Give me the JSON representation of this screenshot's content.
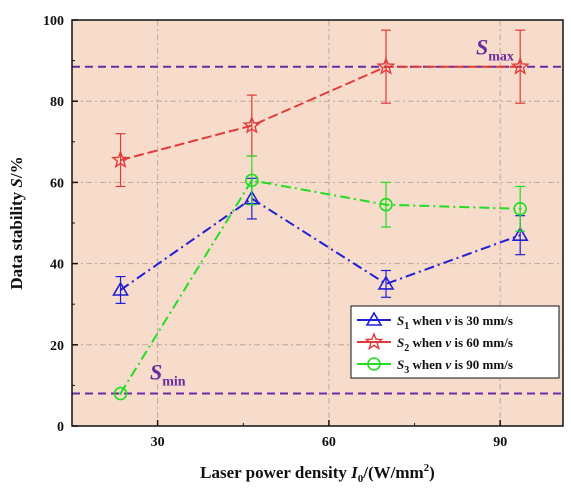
{
  "chart_data": {
    "type": "line",
    "xlabel": {
      "main": "Laser power density ",
      "var": "I",
      "sub": "0",
      "unit": "/(W/mm",
      "sup": "2",
      "close": ")"
    },
    "ylabel": {
      "main": "Data stability ",
      "var": "S",
      "unit": "/%"
    },
    "xlim": [
      15,
      101
    ],
    "ylim": [
      0,
      100
    ],
    "xticks": [
      30,
      60,
      90
    ],
    "yticks": [
      0,
      20,
      40,
      60,
      80,
      100
    ],
    "grid": true,
    "background": "#f8dccb",
    "legend_position": "lower-right",
    "reference_lines": [
      {
        "label_main": "S",
        "label_sub": "max",
        "y": 88.5,
        "color": "#6a2aa0"
      },
      {
        "label_main": "S",
        "label_sub": "min",
        "y": 8,
        "color": "#6a2aa0"
      }
    ],
    "series": [
      {
        "name_var": "S",
        "name_sub": "1",
        "name_mid": " when ",
        "name_var2": "v",
        "name_tail": " is 30 mm/s",
        "color": "#1f1fd6",
        "marker": "triangle",
        "dash": "10 4 2 4",
        "x": [
          23.5,
          46.5,
          70,
          93.5
        ],
        "y": [
          33.5,
          56,
          35,
          47
        ],
        "err": [
          3.3,
          5.0,
          3.3,
          4.8
        ]
      },
      {
        "name_var": "S",
        "name_sub": "2",
        "name_mid": " when ",
        "name_var2": "v",
        "name_tail": " is 60 mm/s",
        "color": "#e03a3a",
        "marker": "star",
        "dash": "10 4",
        "x": [
          23.5,
          46.5,
          70,
          93.5
        ],
        "y": [
          65.5,
          74,
          88.5,
          88.5
        ],
        "err": [
          6.5,
          7.5,
          9.0,
          9.0
        ]
      },
      {
        "name_var": "S",
        "name_sub": "3",
        "name_mid": " when ",
        "name_var2": "v",
        "name_tail": " is 90 mm/s",
        "color": "#22dd22",
        "marker": "circle",
        "dash": "10 4 2 4",
        "x": [
          23.5,
          46.5,
          70,
          93.5
        ],
        "y": [
          8,
          60.5,
          54.5,
          53.5
        ],
        "err": [
          0,
          6.0,
          5.5,
          5.5
        ]
      }
    ]
  }
}
